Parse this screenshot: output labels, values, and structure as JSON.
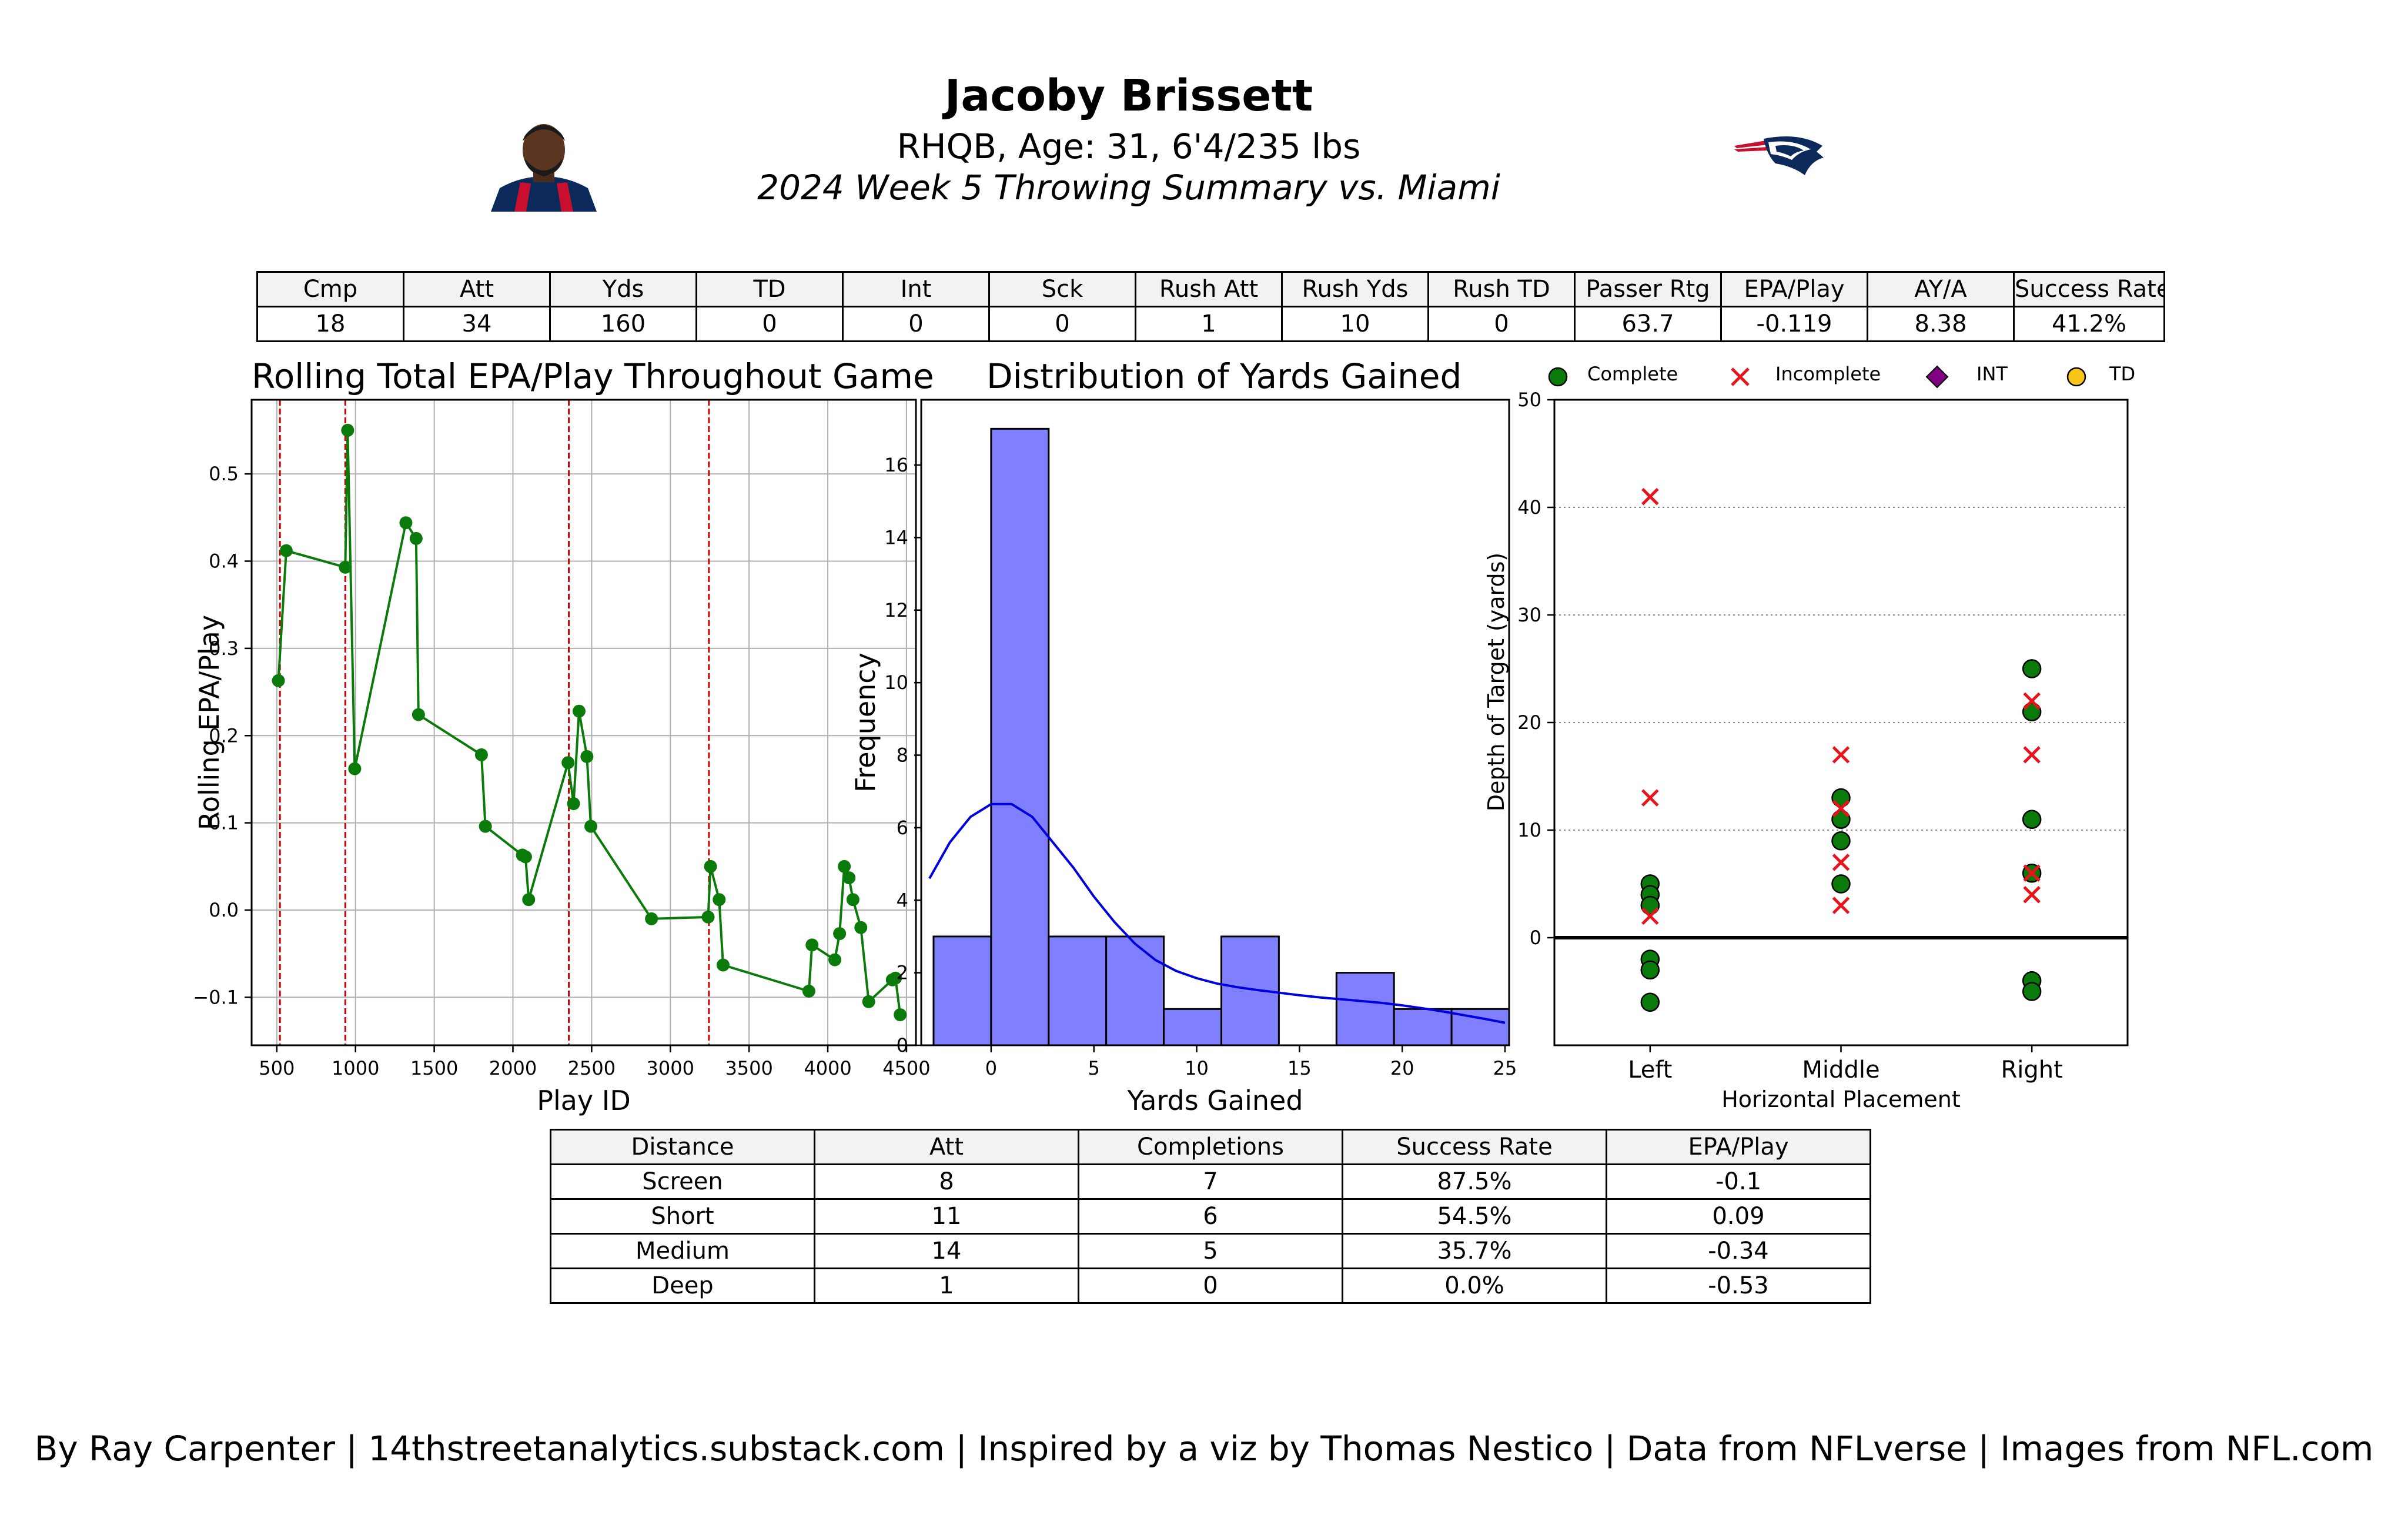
{
  "header": {
    "player_name": "Jacoby Brissett",
    "player_info": "RHQB, Age: 31, 6'4/235 lbs",
    "game_summary": "2024 Week 5 Throwing Summary vs. Miami"
  },
  "stats_table": {
    "headers": [
      "Cmp",
      "Att",
      "Yds",
      "TD",
      "Int",
      "Sck",
      "Rush Att",
      "Rush Yds",
      "Rush TD",
      "Passer Rtg",
      "EPA/Play",
      "AY/A",
      "Success Rate"
    ],
    "values": [
      "18",
      "34",
      "160",
      "0",
      "0",
      "0",
      "1",
      "10",
      "0",
      "63.7",
      "-0.119",
      "8.38",
      "41.2%"
    ]
  },
  "distance_table": {
    "headers": [
      "Distance",
      "Att",
      "Completions",
      "Success Rate",
      "EPA/Play"
    ],
    "rows": [
      [
        "Screen",
        "8",
        "7",
        "87.5%",
        "-0.1"
      ],
      [
        "Short",
        "11",
        "6",
        "54.5%",
        "0.09"
      ],
      [
        "Medium",
        "14",
        "5",
        "35.7%",
        "-0.34"
      ],
      [
        "Deep",
        "1",
        "0",
        "0.0%",
        "-0.53"
      ]
    ]
  },
  "footer": "By Ray Carpenter | 14thstreetanalytics.substack.com | Inspired by a viz by Thomas Nestico | Data from NFLverse | Images from NFL.com",
  "colors": {
    "line": "#0a7a0a",
    "vline": "#cc0000",
    "hist_fill": "#8080ff",
    "kde": "#0000dd",
    "complete": "#0a7a0a",
    "incomplete": "#e8141b",
    "int": "#800080",
    "td": "#f5c518",
    "logo_navy": "#0b2a5b",
    "logo_red": "#c8102e"
  },
  "chart_data": [
    {
      "type": "line",
      "title": "Rolling Total EPA/Play Throughout Game",
      "xlabel": "Play ID",
      "ylabel": "Rolling EPA/Play",
      "xlim": [
        340,
        4560
      ],
      "ylim": [
        -0.155,
        0.585
      ],
      "xticks": [
        500,
        1000,
        1500,
        2000,
        2500,
        3000,
        3500,
        4000,
        4500
      ],
      "yticks": [
        -0.1,
        0.0,
        0.1,
        0.2,
        0.3,
        0.4,
        0.5
      ],
      "ytick_labels": [
        "−0.1",
        "0.0",
        "0.1",
        "0.2",
        "0.3",
        "0.4",
        "0.5"
      ],
      "grid": true,
      "vlines": [
        520,
        935,
        2355,
        3245
      ],
      "x": [
        510,
        560,
        935,
        950,
        995,
        1320,
        1385,
        1400,
        1800,
        1825,
        2060,
        2080,
        2100,
        2350,
        2385,
        2420,
        2470,
        2495,
        2880,
        3240,
        3255,
        3310,
        3335,
        3880,
        3900,
        4045,
        4075,
        4105,
        4135,
        4160,
        4210,
        4260,
        4410,
        4430,
        4460
      ],
      "y": [
        0.263,
        0.412,
        0.393,
        0.55,
        0.162,
        0.444,
        0.426,
        0.224,
        0.178,
        0.096,
        0.063,
        0.061,
        0.012,
        0.169,
        0.122,
        0.228,
        0.176,
        0.096,
        -0.01,
        -0.008,
        0.05,
        0.012,
        -0.063,
        -0.093,
        -0.04,
        -0.057,
        -0.027,
        0.05,
        0.037,
        0.012,
        -0.02,
        -0.105,
        -0.08,
        -0.078,
        -0.12
      ]
    },
    {
      "type": "bar",
      "title": "Distribution of Yards Gained",
      "xlabel": "Yards Gained",
      "ylabel": "Frequency",
      "xlim": [
        -3.4,
        25.2
      ],
      "ylim": [
        0,
        17.8
      ],
      "xticks": [
        0,
        5,
        10,
        15,
        20,
        25
      ],
      "yticks": [
        0,
        2,
        4,
        6,
        8,
        10,
        12,
        14,
        16
      ],
      "bin_edges": [
        -2.8,
        0.0,
        2.8,
        5.6,
        8.4,
        11.2,
        14.0,
        16.8,
        19.6,
        22.4,
        25.2
      ],
      "values": [
        3,
        17,
        3,
        3,
        1,
        3,
        0,
        2,
        1,
        1
      ],
      "kde": {
        "x": [
          -3,
          -2,
          -1,
          0,
          1,
          2,
          3,
          4,
          5,
          6,
          7,
          8,
          9,
          10,
          11,
          12,
          13,
          14,
          15,
          16,
          17,
          18,
          19,
          20,
          21,
          22,
          23,
          24,
          25
        ],
        "y": [
          4.6,
          5.6,
          6.3,
          6.65,
          6.65,
          6.3,
          5.6,
          4.9,
          4.1,
          3.4,
          2.8,
          2.35,
          2.05,
          1.85,
          1.7,
          1.6,
          1.52,
          1.45,
          1.38,
          1.32,
          1.27,
          1.22,
          1.17,
          1.1,
          1.02,
          0.93,
          0.83,
          0.73,
          0.62
        ]
      }
    },
    {
      "type": "scatter",
      "xlabel": "Horizontal Placement",
      "ylabel": "Depth of Target (yards)",
      "categories": [
        "Left",
        "Middle",
        "Right"
      ],
      "ylim": [
        -10,
        50
      ],
      "yticks": [
        0,
        10,
        20,
        30,
        40,
        50
      ],
      "legend": [
        "Complete",
        "Incomplete",
        "INT",
        "TD"
      ],
      "legend_position": "top",
      "series": [
        {
          "name": "Complete",
          "points": [
            [
              "Left",
              5
            ],
            [
              "Left",
              4
            ],
            [
              "Left",
              3
            ],
            [
              "Left",
              -2
            ],
            [
              "Left",
              -3
            ],
            [
              "Left",
              -6
            ],
            [
              "Middle",
              13
            ],
            [
              "Middle",
              11
            ],
            [
              "Middle",
              9
            ],
            [
              "Middle",
              5
            ],
            [
              "Right",
              25
            ],
            [
              "Right",
              21
            ],
            [
              "Right",
              11
            ],
            [
              "Right",
              6
            ],
            [
              "Right",
              -4
            ],
            [
              "Right",
              -5
            ]
          ]
        },
        {
          "name": "Incomplete",
          "points": [
            [
              "Left",
              41
            ],
            [
              "Left",
              13
            ],
            [
              "Left",
              2
            ],
            [
              "Middle",
              17
            ],
            [
              "Middle",
              12
            ],
            [
              "Middle",
              7
            ],
            [
              "Middle",
              3
            ],
            [
              "Right",
              22
            ],
            [
              "Right",
              17
            ],
            [
              "Right",
              6
            ],
            [
              "Right",
              4
            ]
          ]
        },
        {
          "name": "INT",
          "points": []
        },
        {
          "name": "TD",
          "points": []
        }
      ]
    }
  ]
}
